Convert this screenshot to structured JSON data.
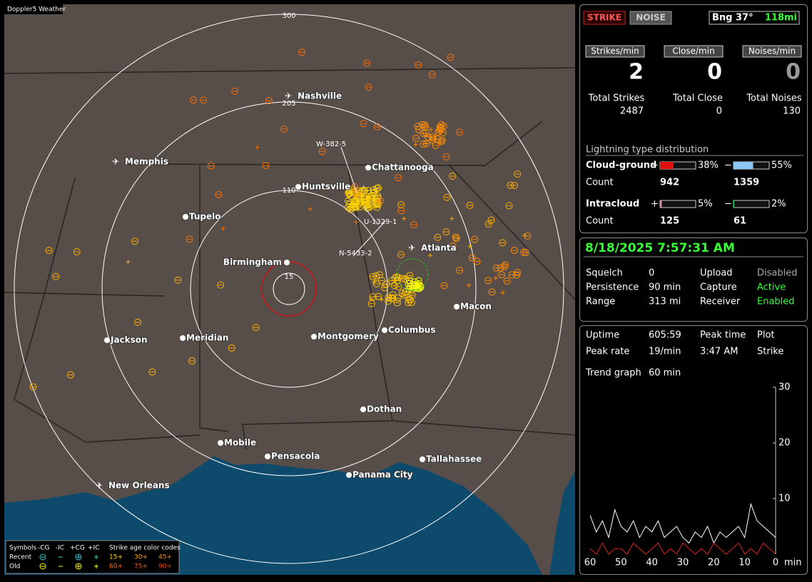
{
  "map": {
    "title": "Doppler5 Weather",
    "ring_labels": [
      "300",
      "205",
      "110",
      "15"
    ],
    "cities": [
      "Nashville",
      "Memphis",
      "Chattanooga",
      "Huntsville",
      "Tupelo",
      "Birmingham",
      "Atlanta",
      "Macon",
      "Columbus",
      "Montgomery",
      "Meridian",
      "Jackson",
      "Dothan",
      "Mobile",
      "Pensacola",
      "Tallahassee",
      "Panama City",
      "New Orleans"
    ],
    "strike_labels": [
      "W-382-5",
      "U-1329-1",
      "N-5433-2"
    ],
    "legend": {
      "symbols_header": "Symbols",
      "symbol_labels": [
        "-CG",
        "-IC",
        "+CG",
        "+IC"
      ],
      "age_header": "Strike age color codes",
      "rows": [
        "Recent",
        "Old"
      ],
      "recent_ages": [
        "15+",
        "30+",
        "45+"
      ],
      "old_ages": [
        "60+",
        "75+",
        "90+"
      ]
    }
  },
  "strike_panel": {
    "strike_button": "STRIKE",
    "noise_button": "NOISE",
    "bearing": "Bng 37°",
    "distance": "118mi",
    "rates": [
      {
        "label": "Strikes/min",
        "value": 2
      },
      {
        "label": "Close/min",
        "value": 0
      },
      {
        "label": "Noises/min",
        "value": 0
      }
    ],
    "totals": [
      {
        "label": "Total Strikes",
        "value": 2487
      },
      {
        "label": "Total Close",
        "value": 0
      },
      {
        "label": "Total Noises",
        "value": 130
      }
    ],
    "distribution_title": "Lightning type distribution",
    "count_label": "Count",
    "distribution": [
      {
        "name": "Cloud-ground",
        "positive": {
          "sign": "+",
          "percent": 38,
          "label": "38%",
          "count": 942
        },
        "negative": {
          "sign": "−",
          "percent": 55,
          "label": "55%",
          "count": 1359
        }
      },
      {
        "name": "Intracloud",
        "positive": {
          "sign": "+",
          "percent": 5,
          "label": "5%",
          "count": 125
        },
        "negative": {
          "sign": "−",
          "percent": 2,
          "label": "2%",
          "count": 61
        }
      }
    ]
  },
  "status_panel": {
    "datetime": "8/18/2025 7:57:31 AM",
    "rows": [
      [
        "Squelch",
        "0",
        "Upload",
        "Disabled"
      ],
      [
        "Persistence",
        "90 min",
        "Capture",
        "Active"
      ],
      [
        "Range",
        "313 mi",
        "Receiver",
        "Enabled"
      ]
    ]
  },
  "trend_panel": {
    "rows": [
      [
        "Uptime",
        "605:59",
        "Peak time",
        "Plot"
      ],
      [
        "Peak rate",
        "19/min",
        "3:47 AM",
        "Strike"
      ]
    ],
    "trend_label": "Trend graph",
    "trend_value": "60 min"
  },
  "chart_data": {
    "type": "line",
    "x": [
      60,
      58,
      56,
      54,
      52,
      50,
      48,
      46,
      44,
      42,
      40,
      38,
      36,
      34,
      32,
      30,
      28,
      26,
      24,
      22,
      20,
      18,
      16,
      14,
      12,
      10,
      8,
      6,
      4,
      2,
      0
    ],
    "series": [
      {
        "color": "#ffffff",
        "values": [
          7,
          4,
          6,
          3,
          8,
          5,
          4,
          6,
          3,
          5,
          4,
          6,
          3,
          4,
          5,
          3,
          2,
          4,
          3,
          5,
          2,
          4,
          3,
          4,
          5,
          3,
          9,
          6,
          5,
          4,
          3
        ]
      },
      {
        "color": "#e02020",
        "values": [
          1,
          0,
          2,
          0,
          1,
          1,
          0,
          2,
          1,
          0,
          1,
          2,
          0,
          1,
          0,
          2,
          1,
          0,
          1,
          0,
          2,
          1,
          0,
          1,
          2,
          0,
          1,
          0,
          2,
          1,
          0
        ]
      }
    ],
    "xlim": [
      60,
      0
    ],
    "ylim": [
      0,
      30
    ],
    "xticks": [
      60,
      50,
      40,
      30,
      20,
      10,
      0
    ],
    "yticks": [
      10,
      20,
      30
    ],
    "xlabel": "min"
  }
}
